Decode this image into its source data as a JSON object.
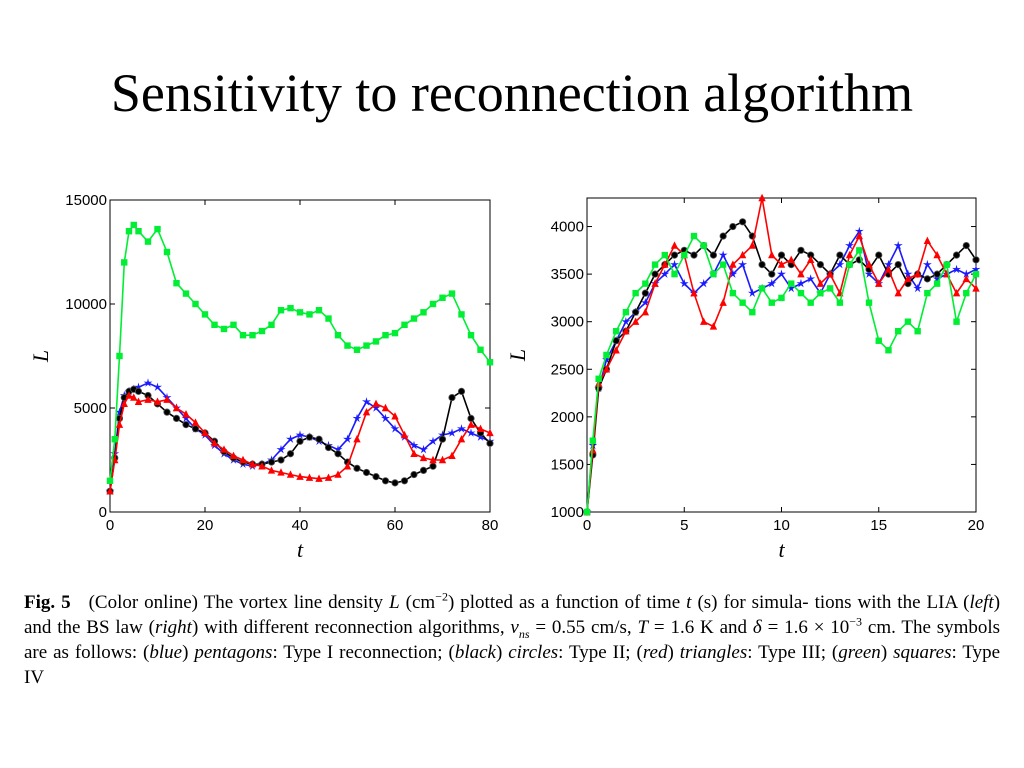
{
  "slide": {
    "title": "Sensitivity to reconnection algorithm"
  },
  "caption": {
    "fig_label": "Fig. 5",
    "p1": "(Color online) The vortex line density",
    "L": "L",
    "p2": "(cm",
    "exp1": "−2",
    "p3": ") plotted as a function of time",
    "t": "t",
    "p4": "(s) for simula- tions with the LIA (",
    "left": "left",
    "p5": ") and the BS law (",
    "right": "right",
    "p6": ") with different reconnection algorithms,",
    "v": "v",
    "ns": "ns",
    "p7": "= 0.55 cm/s,",
    "T": "T",
    "p8": "= 1.6 K and",
    "delta": "δ",
    "p9": "= 1.6 × 10",
    "exp2": "−3",
    "p10": "cm. The symbols are as follows: (",
    "blue": "blue",
    "p11": ")",
    "pentagons": "pentagons",
    "p12": ": Type I reconnection; (",
    "black": "black",
    "p13": ")",
    "circles": "circles",
    "p14": ": Type II; (",
    "red": "red",
    "p15": ")",
    "triangles": "triangles",
    "p16": ": Type III; (",
    "green": "green",
    "p17": ")",
    "squares": "squares",
    "p18": ": Type IV"
  },
  "chart_data": [
    {
      "type": "line",
      "panel": "left",
      "xlabel": "t",
      "ylabel": "L",
      "xlim": [
        0,
        80
      ],
      "ylim": [
        0,
        15000
      ],
      "xticks": [
        0,
        20,
        40,
        60,
        80
      ],
      "yticks": [
        0,
        5000,
        10000,
        15000
      ],
      "grid": false,
      "x": [
        0,
        1,
        2,
        3,
        4,
        5,
        6,
        8,
        10,
        12,
        14,
        16,
        18,
        20,
        22,
        24,
        26,
        28,
        30,
        32,
        34,
        36,
        38,
        40,
        42,
        44,
        46,
        48,
        50,
        52,
        54,
        56,
        58,
        60,
        62,
        64,
        66,
        68,
        70,
        72,
        74,
        76,
        78,
        80
      ],
      "series": [
        {
          "color": "#1a1aff",
          "marker": "star",
          "values": [
            1000,
            2800,
            4800,
            5600,
            5800,
            5900,
            6000,
            6200,
            6000,
            5500,
            5000,
            4500,
            4000,
            3700,
            3200,
            2800,
            2500,
            2300,
            2200,
            2300,
            2500,
            3000,
            3500,
            3700,
            3600,
            3400,
            3200,
            3000,
            3500,
            4500,
            5300,
            5000,
            4500,
            4000,
            3600,
            3200,
            3000,
            3400,
            3700,
            3800,
            4000,
            3800,
            3600,
            3400
          ]
        },
        {
          "color": "#000000",
          "marker": "circle",
          "values": [
            1000,
            2600,
            4500,
            5500,
            5800,
            5900,
            5800,
            5600,
            5200,
            4800,
            4500,
            4200,
            4000,
            3800,
            3400,
            2900,
            2600,
            2400,
            2300,
            2300,
            2400,
            2500,
            2800,
            3400,
            3600,
            3500,
            3100,
            2800,
            2400,
            2100,
            1900,
            1700,
            1500,
            1400,
            1500,
            1800,
            2000,
            2200,
            3500,
            5500,
            5800,
            4500,
            3800,
            3300
          ]
        },
        {
          "color": "#ff0000",
          "marker": "triangle",
          "values": [
            1000,
            2500,
            4200,
            5200,
            5600,
            5500,
            5300,
            5400,
            5300,
            5400,
            5000,
            4700,
            4300,
            3800,
            3300,
            3000,
            2700,
            2500,
            2300,
            2200,
            2000,
            1900,
            1800,
            1700,
            1650,
            1600,
            1650,
            1800,
            2200,
            3500,
            4800,
            5200,
            5000,
            4600,
            3700,
            2800,
            2600,
            2500,
            2500,
            2700,
            3500,
            4200,
            4000,
            3800
          ]
        },
        {
          "color": "#00ee33",
          "marker": "square",
          "values": [
            1500,
            3500,
            7500,
            12000,
            13500,
            13800,
            13500,
            13000,
            13600,
            12500,
            11000,
            10500,
            10000,
            9500,
            9000,
            8800,
            9000,
            8500,
            8500,
            8700,
            9000,
            9700,
            9800,
            9600,
            9500,
            9700,
            9300,
            8500,
            8000,
            7800,
            8000,
            8200,
            8500,
            8600,
            9000,
            9300,
            9600,
            10000,
            10300,
            10500,
            9500,
            8500,
            7800,
            7200
          ]
        }
      ]
    },
    {
      "type": "line",
      "panel": "right",
      "xlabel": "t",
      "ylabel": "L",
      "xlim": [
        0,
        20
      ],
      "ylim": [
        1000,
        4300
      ],
      "xticks": [
        0,
        5,
        10,
        15,
        20
      ],
      "yticks": [
        1000,
        1500,
        2000,
        2500,
        3000,
        3500,
        4000
      ],
      "grid": false,
      "x": [
        0,
        0.3,
        0.6,
        1,
        1.5,
        2,
        2.5,
        3,
        3.5,
        4,
        4.5,
        5,
        5.5,
        6,
        6.5,
        7,
        7.5,
        8,
        8.5,
        9,
        9.5,
        10,
        10.5,
        11,
        11.5,
        12,
        12.5,
        13,
        13.5,
        14,
        14.5,
        15,
        15.5,
        16,
        16.5,
        17,
        17.5,
        18,
        18.5,
        19,
        19.5,
        20
      ],
      "series": [
        {
          "color": "#1a1aff",
          "marker": "star",
          "values": [
            1000,
            1700,
            2300,
            2600,
            2800,
            3000,
            3100,
            3200,
            3400,
            3500,
            3600,
            3400,
            3300,
            3400,
            3500,
            3700,
            3500,
            3600,
            3300,
            3350,
            3400,
            3500,
            3350,
            3400,
            3450,
            3300,
            3500,
            3600,
            3800,
            3950,
            3500,
            3400,
            3600,
            3800,
            3500,
            3350,
            3600,
            3450,
            3500,
            3550,
            3500,
            3550
          ]
        },
        {
          "color": "#000000",
          "marker": "circle",
          "values": [
            1000,
            1600,
            2300,
            2500,
            2800,
            2900,
            3100,
            3300,
            3500,
            3600,
            3700,
            3750,
            3700,
            3800,
            3700,
            3900,
            4000,
            4050,
            3900,
            3600,
            3500,
            3700,
            3600,
            3750,
            3700,
            3600,
            3500,
            3700,
            3600,
            3650,
            3550,
            3700,
            3500,
            3600,
            3400,
            3500,
            3450,
            3500,
            3600,
            3700,
            3800,
            3650
          ]
        },
        {
          "color": "#ff0000",
          "marker": "triangle",
          "values": [
            1000,
            1650,
            2350,
            2500,
            2700,
            2900,
            3000,
            3100,
            3400,
            3600,
            3800,
            3700,
            3300,
            3000,
            2950,
            3200,
            3600,
            3700,
            3800,
            4300,
            3700,
            3600,
            3650,
            3500,
            3650,
            3400,
            3500,
            3300,
            3700,
            3900,
            3600,
            3400,
            3550,
            3300,
            3450,
            3500,
            3850,
            3700,
            3500,
            3300,
            3450,
            3350
          ]
        },
        {
          "color": "#00ee33",
          "marker": "square",
          "values": [
            1000,
            1750,
            2400,
            2650,
            2900,
            3100,
            3300,
            3400,
            3600,
            3700,
            3500,
            3700,
            3900,
            3800,
            3500,
            3600,
            3300,
            3200,
            3100,
            3350,
            3200,
            3250,
            3400,
            3300,
            3200,
            3300,
            3350,
            3200,
            3600,
            3750,
            3200,
            2800,
            2700,
            2900,
            3000,
            2900,
            3300,
            3400,
            3600,
            3000,
            3300,
            3500
          ]
        }
      ]
    }
  ]
}
